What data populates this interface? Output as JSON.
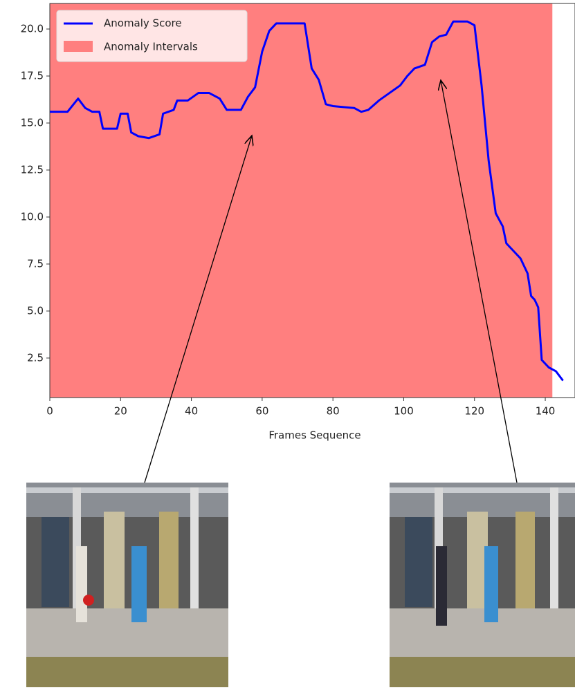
{
  "chart_data": {
    "type": "line",
    "xlabel": "Frames Sequence",
    "x": [
      0,
      5,
      8,
      10,
      12,
      14,
      15,
      19,
      20,
      22,
      23,
      25,
      28,
      31,
      32,
      35,
      36,
      39,
      42,
      45,
      48,
      50,
      54,
      56,
      58,
      60,
      62,
      64,
      72,
      74,
      76,
      78,
      80,
      86,
      88,
      90,
      93,
      96,
      99,
      101,
      103,
      106,
      108,
      110,
      112,
      114,
      118,
      120,
      122,
      124,
      126,
      128,
      129,
      131,
      133,
      135,
      136,
      137,
      138,
      139,
      141,
      143,
      145
    ],
    "series": [
      {
        "name": "Anomaly Score",
        "color": "#0000ff",
        "values": [
          15.6,
          15.6,
          16.3,
          15.8,
          15.6,
          15.6,
          14.7,
          14.7,
          15.5,
          15.5,
          14.5,
          14.3,
          14.2,
          14.4,
          15.5,
          15.7,
          16.2,
          16.2,
          16.6,
          16.6,
          16.3,
          15.7,
          15.7,
          16.4,
          16.9,
          18.8,
          19.9,
          20.3,
          20.3,
          17.9,
          17.3,
          16.0,
          15.9,
          15.8,
          15.6,
          15.7,
          16.2,
          16.6,
          17.0,
          17.5,
          17.9,
          18.1,
          19.3,
          19.6,
          19.7,
          20.4,
          20.4,
          20.2,
          17.0,
          13.0,
          10.2,
          9.5,
          8.6,
          8.2,
          7.8,
          7.0,
          5.8,
          5.6,
          5.2,
          2.4,
          2.0,
          1.8,
          1.3
        ]
      }
    ],
    "intervals": {
      "name": "Anomaly Intervals",
      "color": "#ff7f7f",
      "ranges": [
        [
          0,
          142
        ]
      ]
    },
    "xlim": [
      0,
      148.4
    ],
    "ylim": [
      0.4,
      21.36
    ],
    "xticks": [
      0,
      20,
      40,
      60,
      80,
      100,
      120,
      140
    ],
    "yticks": [
      2.5,
      {
        "value": 5,
        "label": "5.0"
      },
      7.5,
      {
        "value": 10,
        "label": "10.0"
      },
      12.5,
      {
        "value": 15,
        "label": "15.0"
      },
      17.5,
      {
        "value": 20,
        "label": "20.0"
      }
    ],
    "legend": "upper left"
  }
}
